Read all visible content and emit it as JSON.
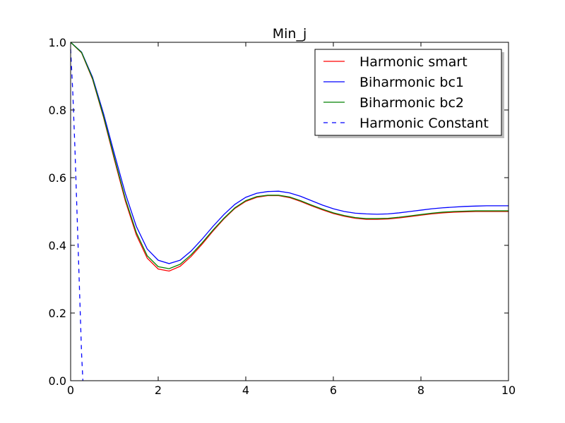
{
  "chart_data": {
    "type": "line",
    "title": "Min_j",
    "xlabel": "",
    "ylabel": "",
    "xlim": [
      0,
      10
    ],
    "ylim": [
      0,
      1.0
    ],
    "xticks": [
      0,
      2,
      4,
      6,
      8,
      10
    ],
    "xtick_labels": [
      "0",
      "2",
      "4",
      "6",
      "8",
      "10"
    ],
    "yticks": [
      0.0,
      0.2,
      0.4,
      0.6,
      0.8,
      1.0
    ],
    "ytick_labels": [
      "0.0",
      "0.2",
      "0.4",
      "0.6",
      "0.8",
      "1.0"
    ],
    "grid": false,
    "legend_position": "top-right",
    "series": [
      {
        "name": "Harmonic smart",
        "color": "#ff0000",
        "style": "solid",
        "x": [
          0,
          0.25,
          0.5,
          0.75,
          1.0,
          1.25,
          1.5,
          1.75,
          2.0,
          2.25,
          2.5,
          2.75,
          3.0,
          3.25,
          3.5,
          3.75,
          4.0,
          4.25,
          4.5,
          4.75,
          5.0,
          5.25,
          5.5,
          5.75,
          6.0,
          6.25,
          6.5,
          6.75,
          7.0,
          7.25,
          7.5,
          7.75,
          8.0,
          8.25,
          8.5,
          8.75,
          9.0,
          9.25,
          9.5,
          9.75,
          10.0
        ],
        "y": [
          1.0,
          0.969,
          0.891,
          0.779,
          0.653,
          0.531,
          0.431,
          0.362,
          0.33,
          0.324,
          0.338,
          0.367,
          0.403,
          0.442,
          0.478,
          0.509,
          0.53,
          0.542,
          0.547,
          0.547,
          0.541,
          0.53,
          0.517,
          0.505,
          0.494,
          0.486,
          0.48,
          0.477,
          0.477,
          0.478,
          0.481,
          0.485,
          0.489,
          0.493,
          0.496,
          0.498,
          0.499,
          0.5,
          0.5,
          0.5,
          0.5
        ]
      },
      {
        "name": "Biharmonic bc1",
        "color": "#0000ff",
        "style": "solid",
        "x": [
          0,
          0.25,
          0.5,
          0.75,
          1.0,
          1.25,
          1.5,
          1.75,
          2.0,
          2.25,
          2.5,
          2.75,
          3.0,
          3.25,
          3.5,
          3.75,
          4.0,
          4.25,
          4.5,
          4.75,
          5.0,
          5.25,
          5.5,
          5.75,
          6.0,
          6.25,
          6.5,
          6.75,
          7.0,
          7.25,
          7.5,
          7.75,
          8.0,
          8.25,
          8.5,
          8.75,
          9.0,
          9.25,
          9.5,
          9.75,
          10.0
        ],
        "y": [
          1.0,
          0.971,
          0.897,
          0.79,
          0.67,
          0.553,
          0.456,
          0.389,
          0.356,
          0.346,
          0.356,
          0.383,
          0.418,
          0.456,
          0.491,
          0.521,
          0.542,
          0.554,
          0.559,
          0.56,
          0.555,
          0.545,
          0.532,
          0.519,
          0.508,
          0.5,
          0.495,
          0.493,
          0.492,
          0.493,
          0.496,
          0.5,
          0.504,
          0.508,
          0.511,
          0.513,
          0.515,
          0.516,
          0.517,
          0.517,
          0.517
        ]
      },
      {
        "name": "Biharmonic bc2",
        "color": "#008000",
        "style": "solid",
        "x": [
          0,
          0.25,
          0.5,
          0.75,
          1.0,
          1.25,
          1.5,
          1.75,
          2.0,
          2.25,
          2.5,
          2.75,
          3.0,
          3.25,
          3.5,
          3.75,
          4.0,
          4.25,
          4.5,
          4.75,
          5.0,
          5.25,
          5.5,
          5.75,
          6.0,
          6.25,
          6.5,
          6.75,
          7.0,
          7.25,
          7.5,
          7.75,
          8.0,
          8.25,
          8.5,
          8.75,
          9.0,
          9.25,
          9.5,
          9.75,
          10.0
        ],
        "y": [
          1.0,
          0.97,
          0.893,
          0.782,
          0.658,
          0.537,
          0.438,
          0.369,
          0.337,
          0.331,
          0.344,
          0.372,
          0.407,
          0.445,
          0.48,
          0.511,
          0.532,
          0.544,
          0.548,
          0.548,
          0.543,
          0.532,
          0.519,
          0.507,
          0.496,
          0.488,
          0.482,
          0.479,
          0.479,
          0.48,
          0.483,
          0.487,
          0.491,
          0.495,
          0.498,
          0.5,
          0.501,
          0.502,
          0.502,
          0.502,
          0.502
        ]
      },
      {
        "name": "Harmonic Constant",
        "color": "#0000ff",
        "style": "dashed",
        "x": [
          0,
          0.05,
          0.1,
          0.15,
          0.2,
          0.25,
          0.28
        ],
        "y": [
          0.98,
          0.85,
          0.68,
          0.48,
          0.28,
          0.08,
          0.0
        ]
      }
    ]
  }
}
